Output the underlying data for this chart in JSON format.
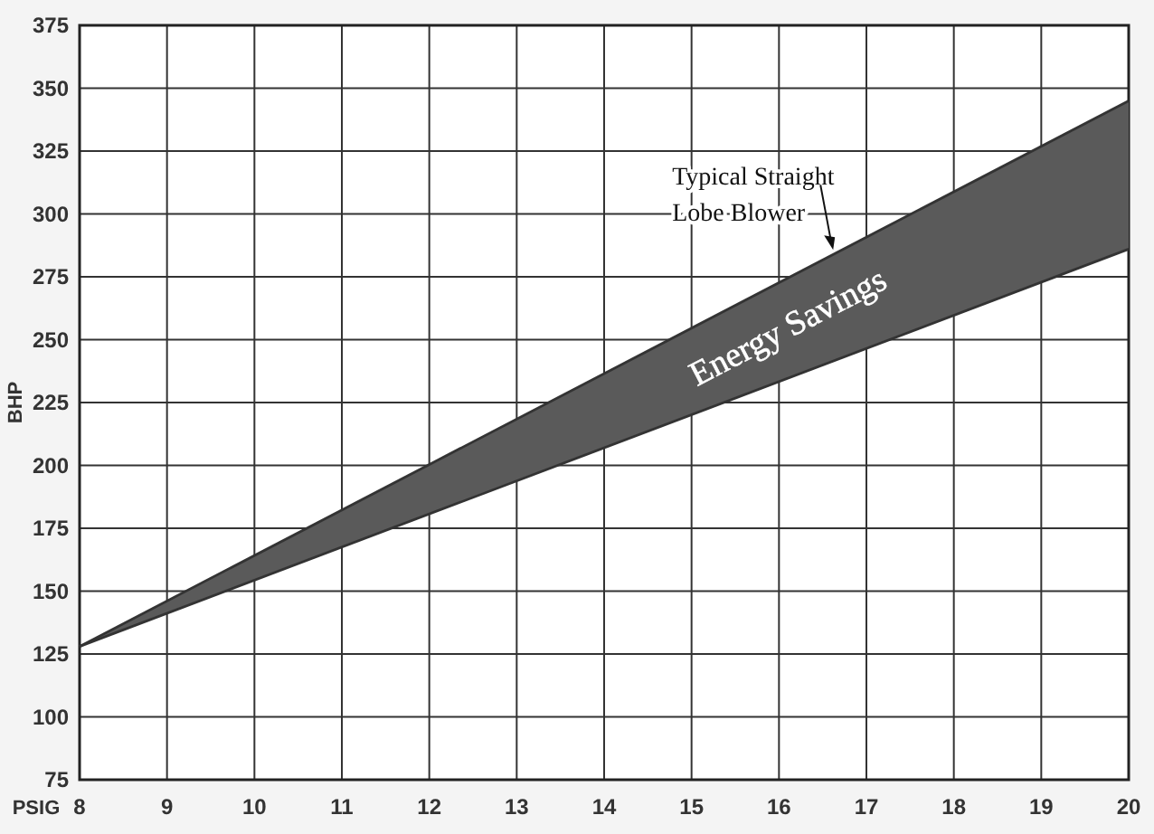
{
  "chart_data": {
    "type": "line",
    "xlabel": "PSIG",
    "ylabel": "BHP",
    "x": [
      8,
      20
    ],
    "series": [
      {
        "name": "Typical Straight Lobe Blower",
        "color": "#333333",
        "values": [
          128,
          345
        ],
        "lower": [
          128,
          286
        ],
        "upper": [
          128,
          345
        ]
      },
      {
        "color": "#333333",
        "values": [
          128,
          286
        ]
      }
    ],
    "annotations": [
      "Energy Savings"
    ],
    "xlim": [
      8,
      20
    ],
    "xticks": [
      8,
      9,
      10,
      11,
      12,
      13,
      14,
      15,
      16,
      17,
      18,
      19,
      20
    ],
    "ylim": [
      75,
      375
    ],
    "yticks": [
      75,
      100,
      125,
      150,
      175,
      200,
      225,
      250,
      275,
      300,
      325,
      350,
      375
    ],
    "grid": true,
    "marker": "none",
    "line_style": "solid"
  }
}
